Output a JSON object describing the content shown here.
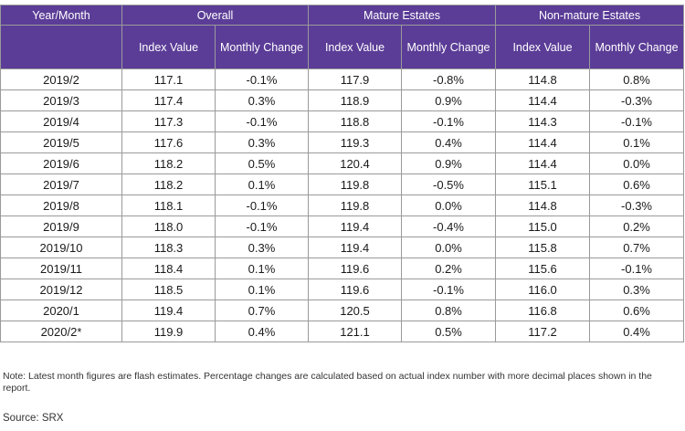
{
  "table": {
    "header_top": [
      "Year/Month",
      "Overall",
      "Mature Estates",
      "Non-mature Estates"
    ],
    "header_sub": [
      "Index Value",
      "Monthly Change",
      "Index Value",
      "Monthly Change",
      "Index Value",
      "Monthly Change"
    ],
    "rows": [
      [
        "2019/2",
        "117.1",
        "-0.1%",
        "117.9",
        "-0.8%",
        "114.8",
        "0.8%"
      ],
      [
        "2019/3",
        "117.4",
        "0.3%",
        "118.9",
        "0.9%",
        "114.4",
        "-0.3%"
      ],
      [
        "2019/4",
        "117.3",
        "-0.1%",
        "118.8",
        "-0.1%",
        "114.3",
        "-0.1%"
      ],
      [
        "2019/5",
        "117.6",
        "0.3%",
        "119.3",
        "0.4%",
        "114.4",
        "0.1%"
      ],
      [
        "2019/6",
        "118.2",
        "0.5%",
        "120.4",
        "0.9%",
        "114.4",
        "0.0%"
      ],
      [
        "2019/7",
        "118.2",
        "0.1%",
        "119.8",
        "-0.5%",
        "115.1",
        "0.6%"
      ],
      [
        "2019/8",
        "118.1",
        "-0.1%",
        "119.8",
        "0.0%",
        "114.8",
        "-0.3%"
      ],
      [
        "2019/9",
        "118.0",
        "-0.1%",
        "119.4",
        "-0.4%",
        "115.0",
        "0.2%"
      ],
      [
        "2019/10",
        "118.3",
        "0.3%",
        "119.4",
        "0.0%",
        "115.8",
        "0.7%"
      ],
      [
        "2019/11",
        "118.4",
        "0.1%",
        "119.6",
        "0.2%",
        "115.6",
        "-0.1%"
      ],
      [
        "2019/12",
        "118.5",
        "0.1%",
        "119.6",
        "-0.1%",
        "116.0",
        "0.3%"
      ],
      [
        "2020/1",
        "119.4",
        "0.7%",
        "120.5",
        "0.8%",
        "116.8",
        "0.6%"
      ],
      [
        "2020/2*",
        "119.9",
        "0.4%",
        "121.1",
        "0.5%",
        "117.2",
        "0.4%"
      ]
    ]
  },
  "note": "Note: Latest month figures are flash estimates. Percentage changes are calculated based on actual index number with more decimal places shown in the report.",
  "source": "Source: SRX",
  "colors": {
    "header_bg": "#5b3d97",
    "header_text": "#ffffff",
    "grid": "#9a9a9a"
  }
}
